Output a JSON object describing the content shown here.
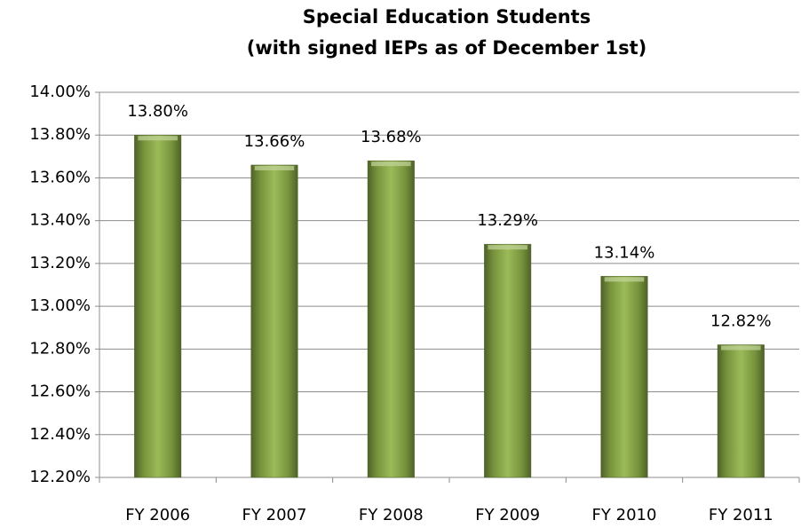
{
  "chart_data": {
    "type": "bar",
    "title": "Special Education Students",
    "subtitle": "(with signed IEPs as of December 1st)",
    "categories": [
      "FY 2006",
      "FY 2007",
      "FY 2008",
      "FY 2009",
      "FY 2010",
      "FY 2011"
    ],
    "values": [
      13.8,
      13.66,
      13.68,
      13.29,
      13.14,
      12.82
    ],
    "value_labels": [
      "13.80%",
      "13.66%",
      "13.68%",
      "13.29%",
      "13.14%",
      "12.82%"
    ],
    "color": "#77933c",
    "ylim": [
      12.2,
      14.0
    ],
    "yticks": [
      {
        "value": 12.2,
        "label": "12.20%"
      },
      {
        "value": 12.4,
        "label": "12.40%"
      },
      {
        "value": 12.6,
        "label": "12.60%"
      },
      {
        "value": 12.8,
        "label": "12.80%"
      },
      {
        "value": 13.0,
        "label": "13.00%"
      },
      {
        "value": 13.2,
        "label": "13.20%"
      },
      {
        "value": 13.4,
        "label": "13.40%"
      },
      {
        "value": 13.6,
        "label": "13.60%"
      },
      {
        "value": 13.8,
        "label": "13.80%"
      },
      {
        "value": 14.0,
        "label": "14.00%"
      }
    ],
    "grid": true
  }
}
